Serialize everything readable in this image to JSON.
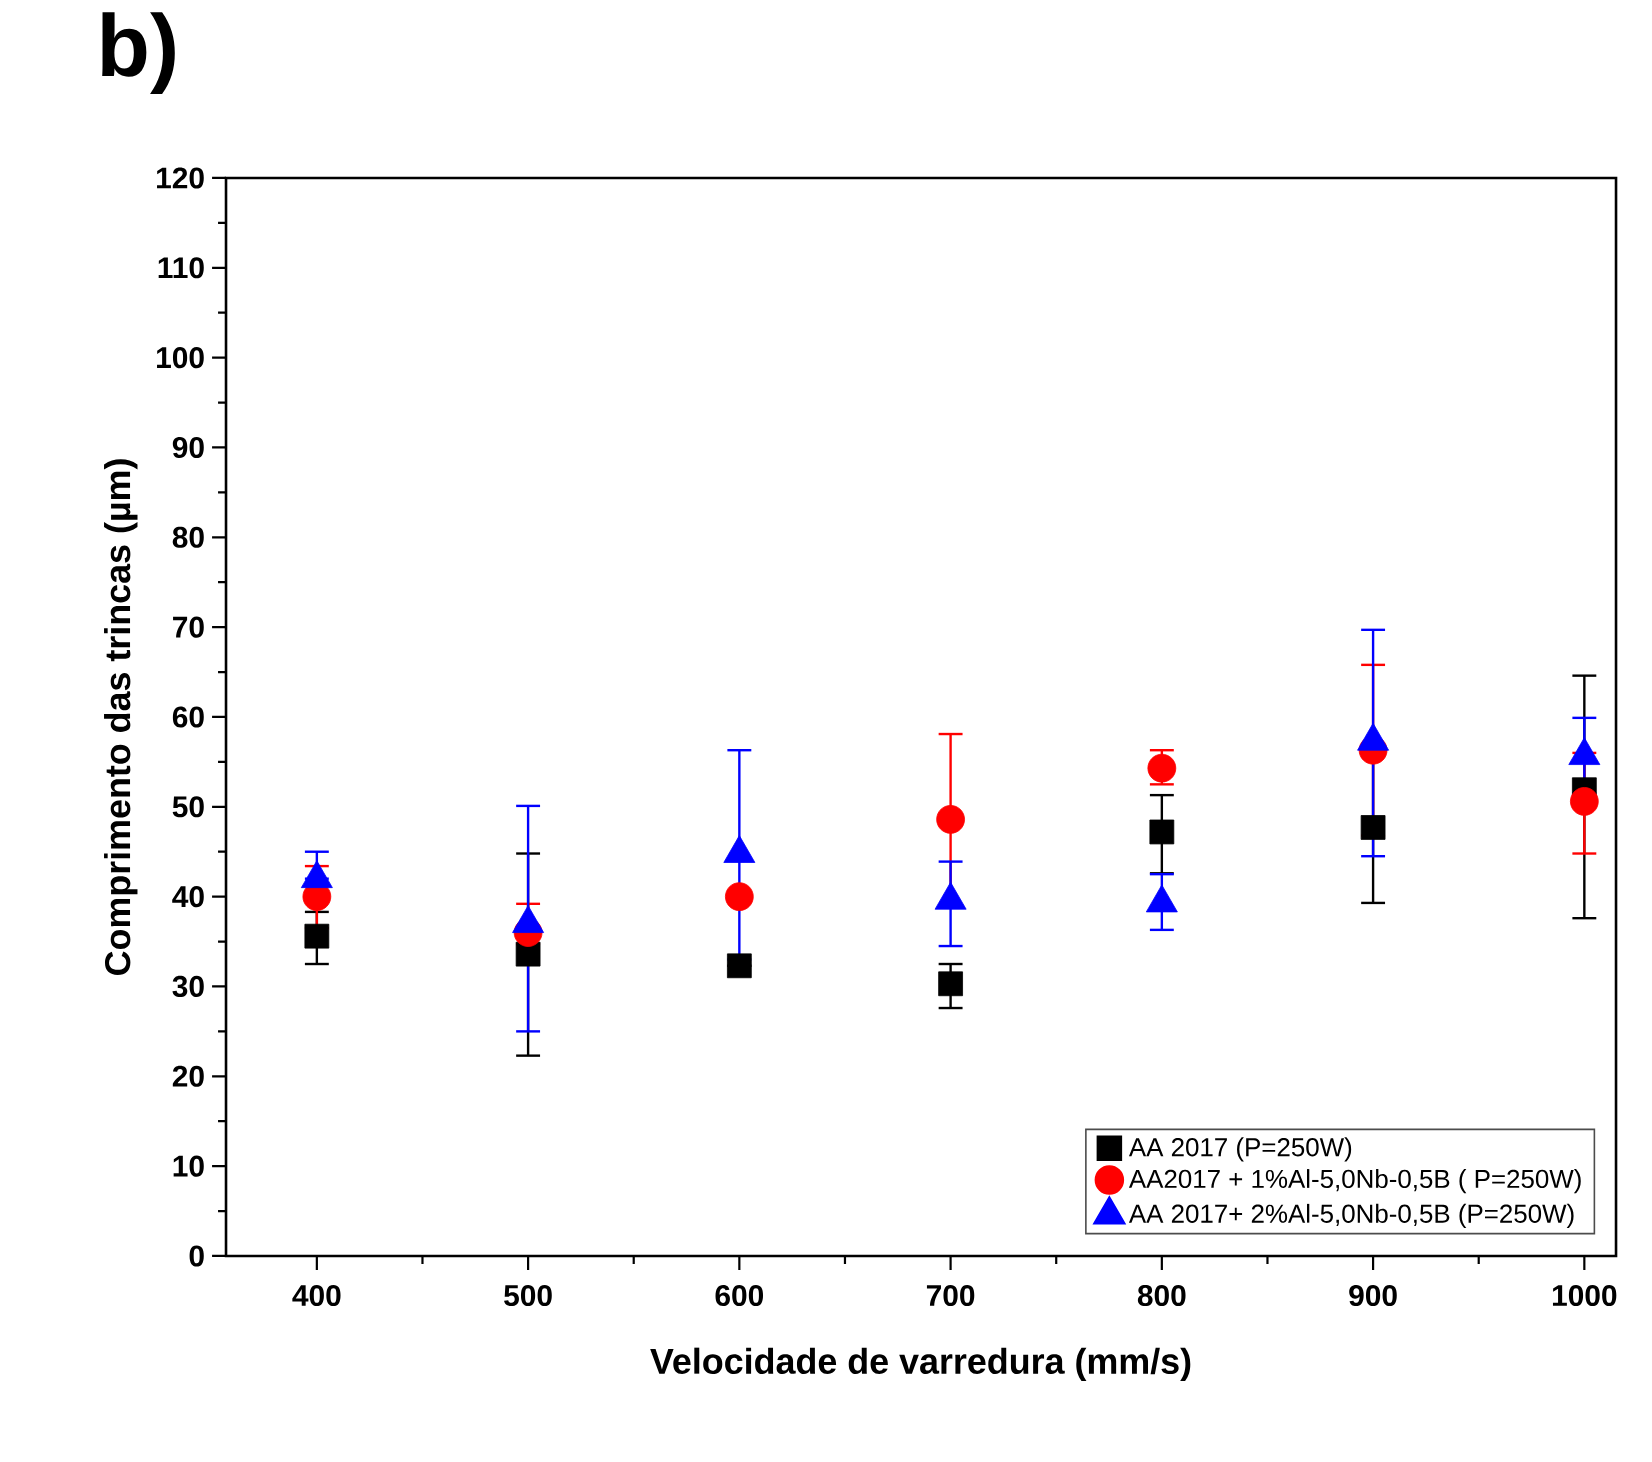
{
  "chart_data": {
    "type": "scatter",
    "title": "b)",
    "xlabel": "Velocidade de varredura (mm/s)",
    "ylabel": "Comprimento das trincas (µm)",
    "x": [
      400,
      500,
      600,
      700,
      800,
      900,
      1000
    ],
    "xlim": [
      357,
      1015
    ],
    "xticks": [
      400,
      500,
      600,
      700,
      800,
      900,
      1000
    ],
    "ylim": [
      0,
      120
    ],
    "yticks": [
      0,
      10,
      20,
      30,
      40,
      50,
      60,
      70,
      80,
      90,
      100,
      110,
      120
    ],
    "grid": false,
    "legend": "bottom right",
    "series": [
      {
        "name": "AA 2017 (P=250W)",
        "color": "#000000",
        "marker": "square",
        "values": [
          35.6,
          33.6,
          32.3,
          30.3,
          47.2,
          47.7,
          51.9
        ],
        "errors": [
          [
            32.5,
            38.3
          ],
          [
            22.3,
            44.8
          ],
          null,
          [
            27.6,
            32.5
          ],
          [
            42.6,
            51.3
          ],
          [
            39.3,
            56.1
          ],
          [
            37.6,
            64.6
          ]
        ]
      },
      {
        "name": "AA2017 + 1%Al-5,0Nb-0,5B ( P=250W)",
        "color": "#ff0000",
        "marker": "circle",
        "values": [
          40,
          36,
          40,
          48.6,
          54.3,
          56.3,
          50.6
        ],
        "errors": [
          [
            36.5,
            43.4
          ],
          [
            34.7,
            39.2
          ],
          null,
          [
            39,
            58.1
          ],
          [
            52.5,
            56.3
          ],
          [
            46.8,
            65.8
          ],
          [
            44.8,
            56
          ]
        ]
      },
      {
        "name": "AA 2017+ 2%Al-5,0Nb-0,5B  (P=250W)",
        "color": "#0000ff",
        "marker": "triangle",
        "values": [
          42,
          37,
          44.8,
          39.6,
          39.3,
          57.3,
          55.7
        ],
        "errors": [
          [
            42,
            45
          ],
          [
            25,
            50.1
          ],
          [
            33,
            56.3
          ],
          [
            34.5,
            43.9
          ],
          [
            36.3,
            42.5
          ],
          [
            44.5,
            69.7
          ],
          [
            51.5,
            59.9
          ]
        ]
      }
    ]
  }
}
